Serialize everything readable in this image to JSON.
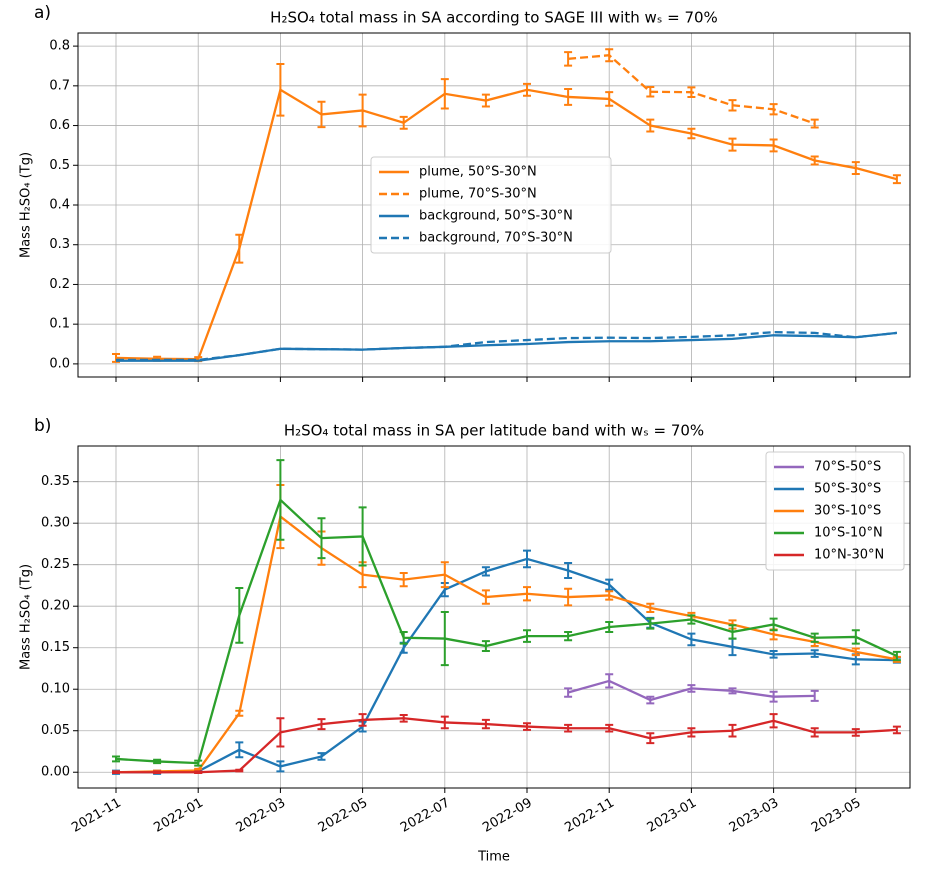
{
  "chart_data": [
    {
      "type": "line",
      "panel_label": "a)",
      "title": "H₂SO₄ total mass in SA according to SAGE III with wₛ = 70%",
      "ylabel": "Mass H₂SO₄ (Tg)",
      "grid": true,
      "legend": "center",
      "xtick_labels": false,
      "x": [
        "2021-11",
        "2021-12",
        "2022-01",
        "2022-02",
        "2022-03",
        "2022-04",
        "2022-05",
        "2022-06",
        "2022-07",
        "2022-08",
        "2022-09",
        "2022-10",
        "2022-11",
        "2022-12",
        "2023-01",
        "2023-02",
        "2023-03",
        "2023-04",
        "2023-05",
        "2023-06"
      ],
      "xticks": [
        "2021-11",
        "2022-01",
        "2022-03",
        "2022-05",
        "2022-07",
        "2022-09",
        "2022-11",
        "2023-01",
        "2023-03",
        "2023-05"
      ],
      "ylim": [
        -0.033,
        0.833
      ],
      "yticks": [
        {
          "value": 0,
          "label": "0.0"
        },
        0.1,
        0.2,
        0.3,
        0.4,
        0.5,
        0.6,
        0.7,
        0.8
      ],
      "series": [
        {
          "name": "plume, 50°S-30°N",
          "color": "#ff7f0e",
          "dash": false,
          "values": [
            0.015,
            0.013,
            0.012,
            0.29,
            0.69,
            0.628,
            0.638,
            0.607,
            0.68,
            0.663,
            0.69,
            0.672,
            0.667,
            0.6,
            0.58,
            0.552,
            0.55,
            0.512,
            0.493,
            0.465
          ],
          "errors": [
            0.01,
            0.005,
            0.005,
            0.035,
            0.065,
            0.032,
            0.04,
            0.015,
            0.037,
            0.015,
            0.015,
            0.02,
            0.017,
            0.015,
            0.012,
            0.015,
            0.015,
            0.01,
            0.015,
            0.01
          ]
        },
        {
          "name": "plume, 70°S-30°N",
          "color": "#ff7f0e",
          "dash": true,
          "values": [
            null,
            null,
            null,
            null,
            null,
            null,
            null,
            null,
            null,
            null,
            null,
            0.768,
            0.777,
            0.685,
            0.684,
            0.651,
            0.641,
            0.605,
            null,
            null
          ],
          "errors": [
            null,
            null,
            null,
            null,
            null,
            null,
            null,
            null,
            null,
            null,
            null,
            0.017,
            0.015,
            0.012,
            0.012,
            0.013,
            0.013,
            0.01,
            null,
            null
          ]
        },
        {
          "name": "background, 50°S-30°N",
          "color": "#1f77b4",
          "dash": false,
          "values": [
            0.008,
            0.008,
            0.008,
            0.022,
            0.038,
            0.037,
            0.036,
            0.04,
            0.043,
            0.047,
            0.05,
            0.055,
            0.057,
            0.057,
            0.06,
            0.063,
            0.072,
            0.07,
            0.067,
            0.078
          ]
        },
        {
          "name": "background, 70°S-30°N",
          "color": "#1f77b4",
          "dash": true,
          "values": [
            0.01,
            0.01,
            0.01,
            0.022,
            0.038,
            0.037,
            0.036,
            0.04,
            0.043,
            0.055,
            0.06,
            0.065,
            0.066,
            0.065,
            0.068,
            0.072,
            0.08,
            0.078,
            0.067,
            0.078
          ]
        }
      ]
    },
    {
      "type": "line",
      "panel_label": "b)",
      "title": "H₂SO₄ total mass in SA per latitude band with wₛ = 70%",
      "ylabel": "Mass H₂SO₄ (Tg)",
      "xlabel": "Time",
      "grid": true,
      "legend": "upper right",
      "xtick_labels": true,
      "x": [
        "2021-11",
        "2021-12",
        "2022-01",
        "2022-02",
        "2022-03",
        "2022-04",
        "2022-05",
        "2022-06",
        "2022-07",
        "2022-08",
        "2022-09",
        "2022-10",
        "2022-11",
        "2022-12",
        "2023-01",
        "2023-02",
        "2023-03",
        "2023-04",
        "2023-05",
        "2023-06"
      ],
      "xticks": [
        "2021-11",
        "2022-01",
        "2022-03",
        "2022-05",
        "2022-07",
        "2022-09",
        "2022-11",
        "2023-01",
        "2023-03",
        "2023-05"
      ],
      "ylim": [
        -0.019,
        0.393
      ],
      "yticks": [
        {
          "value": 0,
          "label": "0.00"
        },
        0.05,
        {
          "value": 0.1,
          "label": "0.10"
        },
        0.15,
        {
          "value": 0.2,
          "label": "0.20"
        },
        0.25,
        {
          "value": 0.3,
          "label": "0.30"
        },
        0.35
      ],
      "series": [
        {
          "name": "70°S-50°S",
          "color": "#9467bd",
          "dash": false,
          "values": [
            null,
            null,
            null,
            null,
            null,
            null,
            null,
            null,
            null,
            null,
            null,
            0.096,
            0.11,
            0.087,
            0.101,
            0.098,
            0.091,
            0.092,
            null,
            null
          ],
          "errors": [
            null,
            null,
            null,
            null,
            null,
            null,
            null,
            null,
            null,
            null,
            null,
            0.005,
            0.008,
            0.004,
            0.004,
            0.003,
            0.006,
            0.006,
            null,
            null
          ]
        },
        {
          "name": "50°S-30°S",
          "color": "#1f77b4",
          "dash": false,
          "values": [
            0,
            0,
            0.001,
            0.027,
            0.007,
            0.019,
            0.055,
            0.15,
            0.22,
            0.242,
            0.257,
            0.243,
            0.226,
            0.18,
            0.16,
            0.151,
            0.142,
            0.143,
            0.136,
            0.135
          ],
          "errors": [
            0.002,
            0.002,
            0.002,
            0.009,
            0.006,
            0.004,
            0.006,
            0.006,
            0.008,
            0.005,
            0.01,
            0.009,
            0.006,
            0.006,
            0.007,
            0.01,
            0.004,
            0.004,
            0.006,
            0.003
          ]
        },
        {
          "name": "30°S-10°S",
          "color": "#ff7f0e",
          "dash": false,
          "values": [
            0,
            0.001,
            0.002,
            0.071,
            0.308,
            0.27,
            0.238,
            0.232,
            0.238,
            0.211,
            0.215,
            0.211,
            0.213,
            0.198,
            0.188,
            0.178,
            0.166,
            0.157,
            0.145,
            0.136
          ],
          "errors": [
            0.001,
            0.001,
            0.002,
            0.003,
            0.038,
            0.02,
            0.015,
            0.008,
            0.015,
            0.008,
            0.008,
            0.01,
            0.005,
            0.005,
            0.004,
            0.005,
            0.006,
            0.005,
            0.004,
            0.003
          ]
        },
        {
          "name": "10°S-10°N",
          "color": "#2ca02c",
          "dash": false,
          "values": [
            0.016,
            0.013,
            0.011,
            0.189,
            0.328,
            0.282,
            0.284,
            0.162,
            0.161,
            0.152,
            0.164,
            0.164,
            0.175,
            0.179,
            0.184,
            0.169,
            0.178,
            0.162,
            0.163,
            0.14
          ],
          "errors": [
            0.003,
            0.002,
            0.003,
            0.033,
            0.048,
            0.024,
            0.035,
            0.007,
            0.032,
            0.006,
            0.007,
            0.005,
            0.006,
            0.006,
            0.005,
            0.008,
            0.007,
            0.005,
            0.008,
            0.005
          ]
        },
        {
          "name": "10°N-30°N",
          "color": "#d62728",
          "dash": false,
          "values": [
            0,
            0,
            0,
            0.002,
            0.048,
            0.058,
            0.063,
            0.065,
            0.06,
            0.058,
            0.055,
            0.053,
            0.053,
            0.041,
            0.048,
            0.05,
            0.062,
            0.048,
            0.048,
            0.051
          ],
          "errors": [
            0.001,
            0.001,
            0.001,
            0.001,
            0.017,
            0.006,
            0.007,
            0.004,
            0.007,
            0.005,
            0.004,
            0.004,
            0.004,
            0.006,
            0.005,
            0.007,
            0.008,
            0.005,
            0.004,
            0.004
          ]
        }
      ]
    }
  ]
}
